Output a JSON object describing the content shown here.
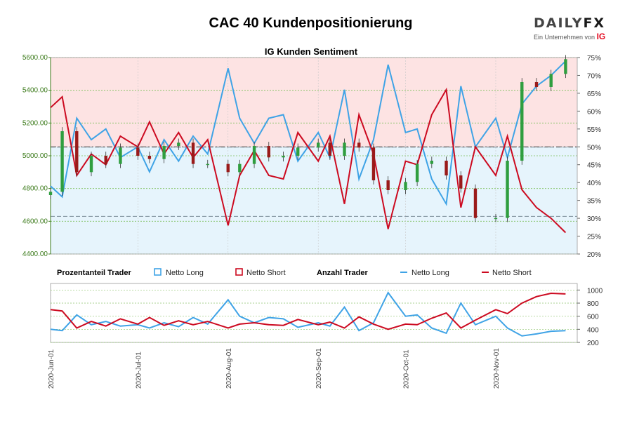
{
  "header": {
    "title": "CAC 40 Kundenpositionierung",
    "brand_main_a": "DAILY",
    "brand_main_b": "FX",
    "brand_sub": "Ein Unternehmen von",
    "brand_sub_ig": "IG"
  },
  "colors": {
    "long": "#3fa3e6",
    "short": "#cc0a20",
    "candle_up": "#2f9e3f",
    "candle_down": "#9a1a1a",
    "band_short": "#fde3e3",
    "band_long": "#e6f4fc",
    "price_axis": "#3b7a1a"
  },
  "chart_data": [
    {
      "type": "candlestick_with_line",
      "title": "IG Kunden Sentiment",
      "y_left": {
        "ylim": [
          4400,
          5600
        ],
        "ticks": [
          "5600.00",
          "5400.00",
          "5200.00",
          "5000.00",
          "4800.00",
          "4600.00",
          "4400.00"
        ]
      },
      "y_right": {
        "ylim": [
          20,
          75
        ],
        "ticks": [
          "75%",
          "70%",
          "65%",
          "60%",
          "55%",
          "50%",
          "45%",
          "40%",
          "35%",
          "30%",
          "25%",
          "20%"
        ]
      },
      "reference_lines": {
        "price": [
          5053,
          4630
        ],
        "percent": [
          50
        ]
      },
      "x_dates": [
        "2020-06-01",
        "2020-06-05",
        "2020-06-10",
        "2020-06-15",
        "2020-06-20",
        "2020-06-25",
        "2020-07-01",
        "2020-07-05",
        "2020-07-10",
        "2020-07-15",
        "2020-07-20",
        "2020-07-25",
        "2020-08-01",
        "2020-08-05",
        "2020-08-10",
        "2020-08-15",
        "2020-08-20",
        "2020-08-25",
        "2020-09-01",
        "2020-09-05",
        "2020-09-10",
        "2020-09-15",
        "2020-09-20",
        "2020-09-25",
        "2020-10-01",
        "2020-10-05",
        "2020-10-10",
        "2020-10-15",
        "2020-10-20",
        "2020-10-25",
        "2020-11-01",
        "2020-11-05",
        "2020-11-10",
        "2020-11-15",
        "2020-11-20",
        "2020-11-25"
      ],
      "price_close": [
        4780,
        5150,
        4900,
        5000,
        4950,
        5050,
        5000,
        4980,
        5060,
        5080,
        4950,
        4950,
        4900,
        4950,
        5060,
        4990,
        5000,
        5050,
        5080,
        5000,
        5080,
        5050,
        4850,
        4790,
        4840,
        4950,
        4970,
        4880,
        4800,
        4620,
        4620,
        4970,
        5450,
        5420,
        5500,
        5590
      ],
      "netto_long_pct": [
        39,
        36,
        58,
        52,
        55,
        47,
        50,
        43,
        52,
        46,
        53,
        48,
        72,
        58,
        51,
        58,
        59,
        46,
        54,
        47,
        66,
        41,
        52,
        73,
        54,
        55,
        41,
        34,
        67,
        50,
        58,
        47,
        62,
        67,
        70,
        74
      ],
      "netto_short_pct": [
        61,
        64,
        42,
        48,
        45,
        53,
        50,
        57,
        48,
        54,
        47,
        52,
        28,
        42,
        49,
        42,
        41,
        54,
        46,
        53,
        34,
        59,
        48,
        27,
        46,
        45,
        59,
        66,
        33,
        50,
        42,
        53,
        38,
        33,
        30,
        26
      ]
    },
    {
      "type": "line",
      "title": "Anzahl Trader",
      "y_right": {
        "ylim": [
          200,
          1100
        ],
        "ticks": [
          "1000",
          "800",
          "600",
          "400",
          "200"
        ]
      },
      "x_dates": [
        "2020-06-01",
        "2020-06-05",
        "2020-06-10",
        "2020-06-15",
        "2020-06-20",
        "2020-06-25",
        "2020-07-01",
        "2020-07-05",
        "2020-07-10",
        "2020-07-15",
        "2020-07-20",
        "2020-07-25",
        "2020-08-01",
        "2020-08-05",
        "2020-08-10",
        "2020-08-15",
        "2020-08-20",
        "2020-08-25",
        "2020-09-01",
        "2020-09-05",
        "2020-09-10",
        "2020-09-15",
        "2020-09-20",
        "2020-09-25",
        "2020-10-01",
        "2020-10-05",
        "2020-10-10",
        "2020-10-15",
        "2020-10-20",
        "2020-10-25",
        "2020-11-01",
        "2020-11-05",
        "2020-11-10",
        "2020-11-15",
        "2020-11-20",
        "2020-11-25"
      ],
      "netto_long": [
        400,
        380,
        620,
        470,
        520,
        450,
        470,
        420,
        500,
        440,
        580,
        480,
        850,
        600,
        500,
        580,
        560,
        430,
        500,
        450,
        740,
        380,
        500,
        960,
        600,
        620,
        420,
        340,
        800,
        470,
        600,
        420,
        300,
        330,
        370,
        380
      ],
      "netto_short": [
        700,
        680,
        420,
        520,
        450,
        560,
        480,
        580,
        460,
        530,
        470,
        520,
        420,
        480,
        500,
        470,
        460,
        550,
        470,
        510,
        420,
        590,
        480,
        400,
        480,
        470,
        570,
        650,
        420,
        540,
        700,
        640,
        800,
        900,
        950,
        940
      ]
    }
  ],
  "x_tick_labels": [
    "2020-Jun-01",
    "2020-Jul-01",
    "2020-Aug-01",
    "2020-Sep-01",
    "2020-Oct-01",
    "2020-Nov-01"
  ],
  "legend": {
    "group1": "Prozentanteil Trader",
    "group2": "Anzahl Trader",
    "long": "Netto Long",
    "short": "Netto Short"
  }
}
